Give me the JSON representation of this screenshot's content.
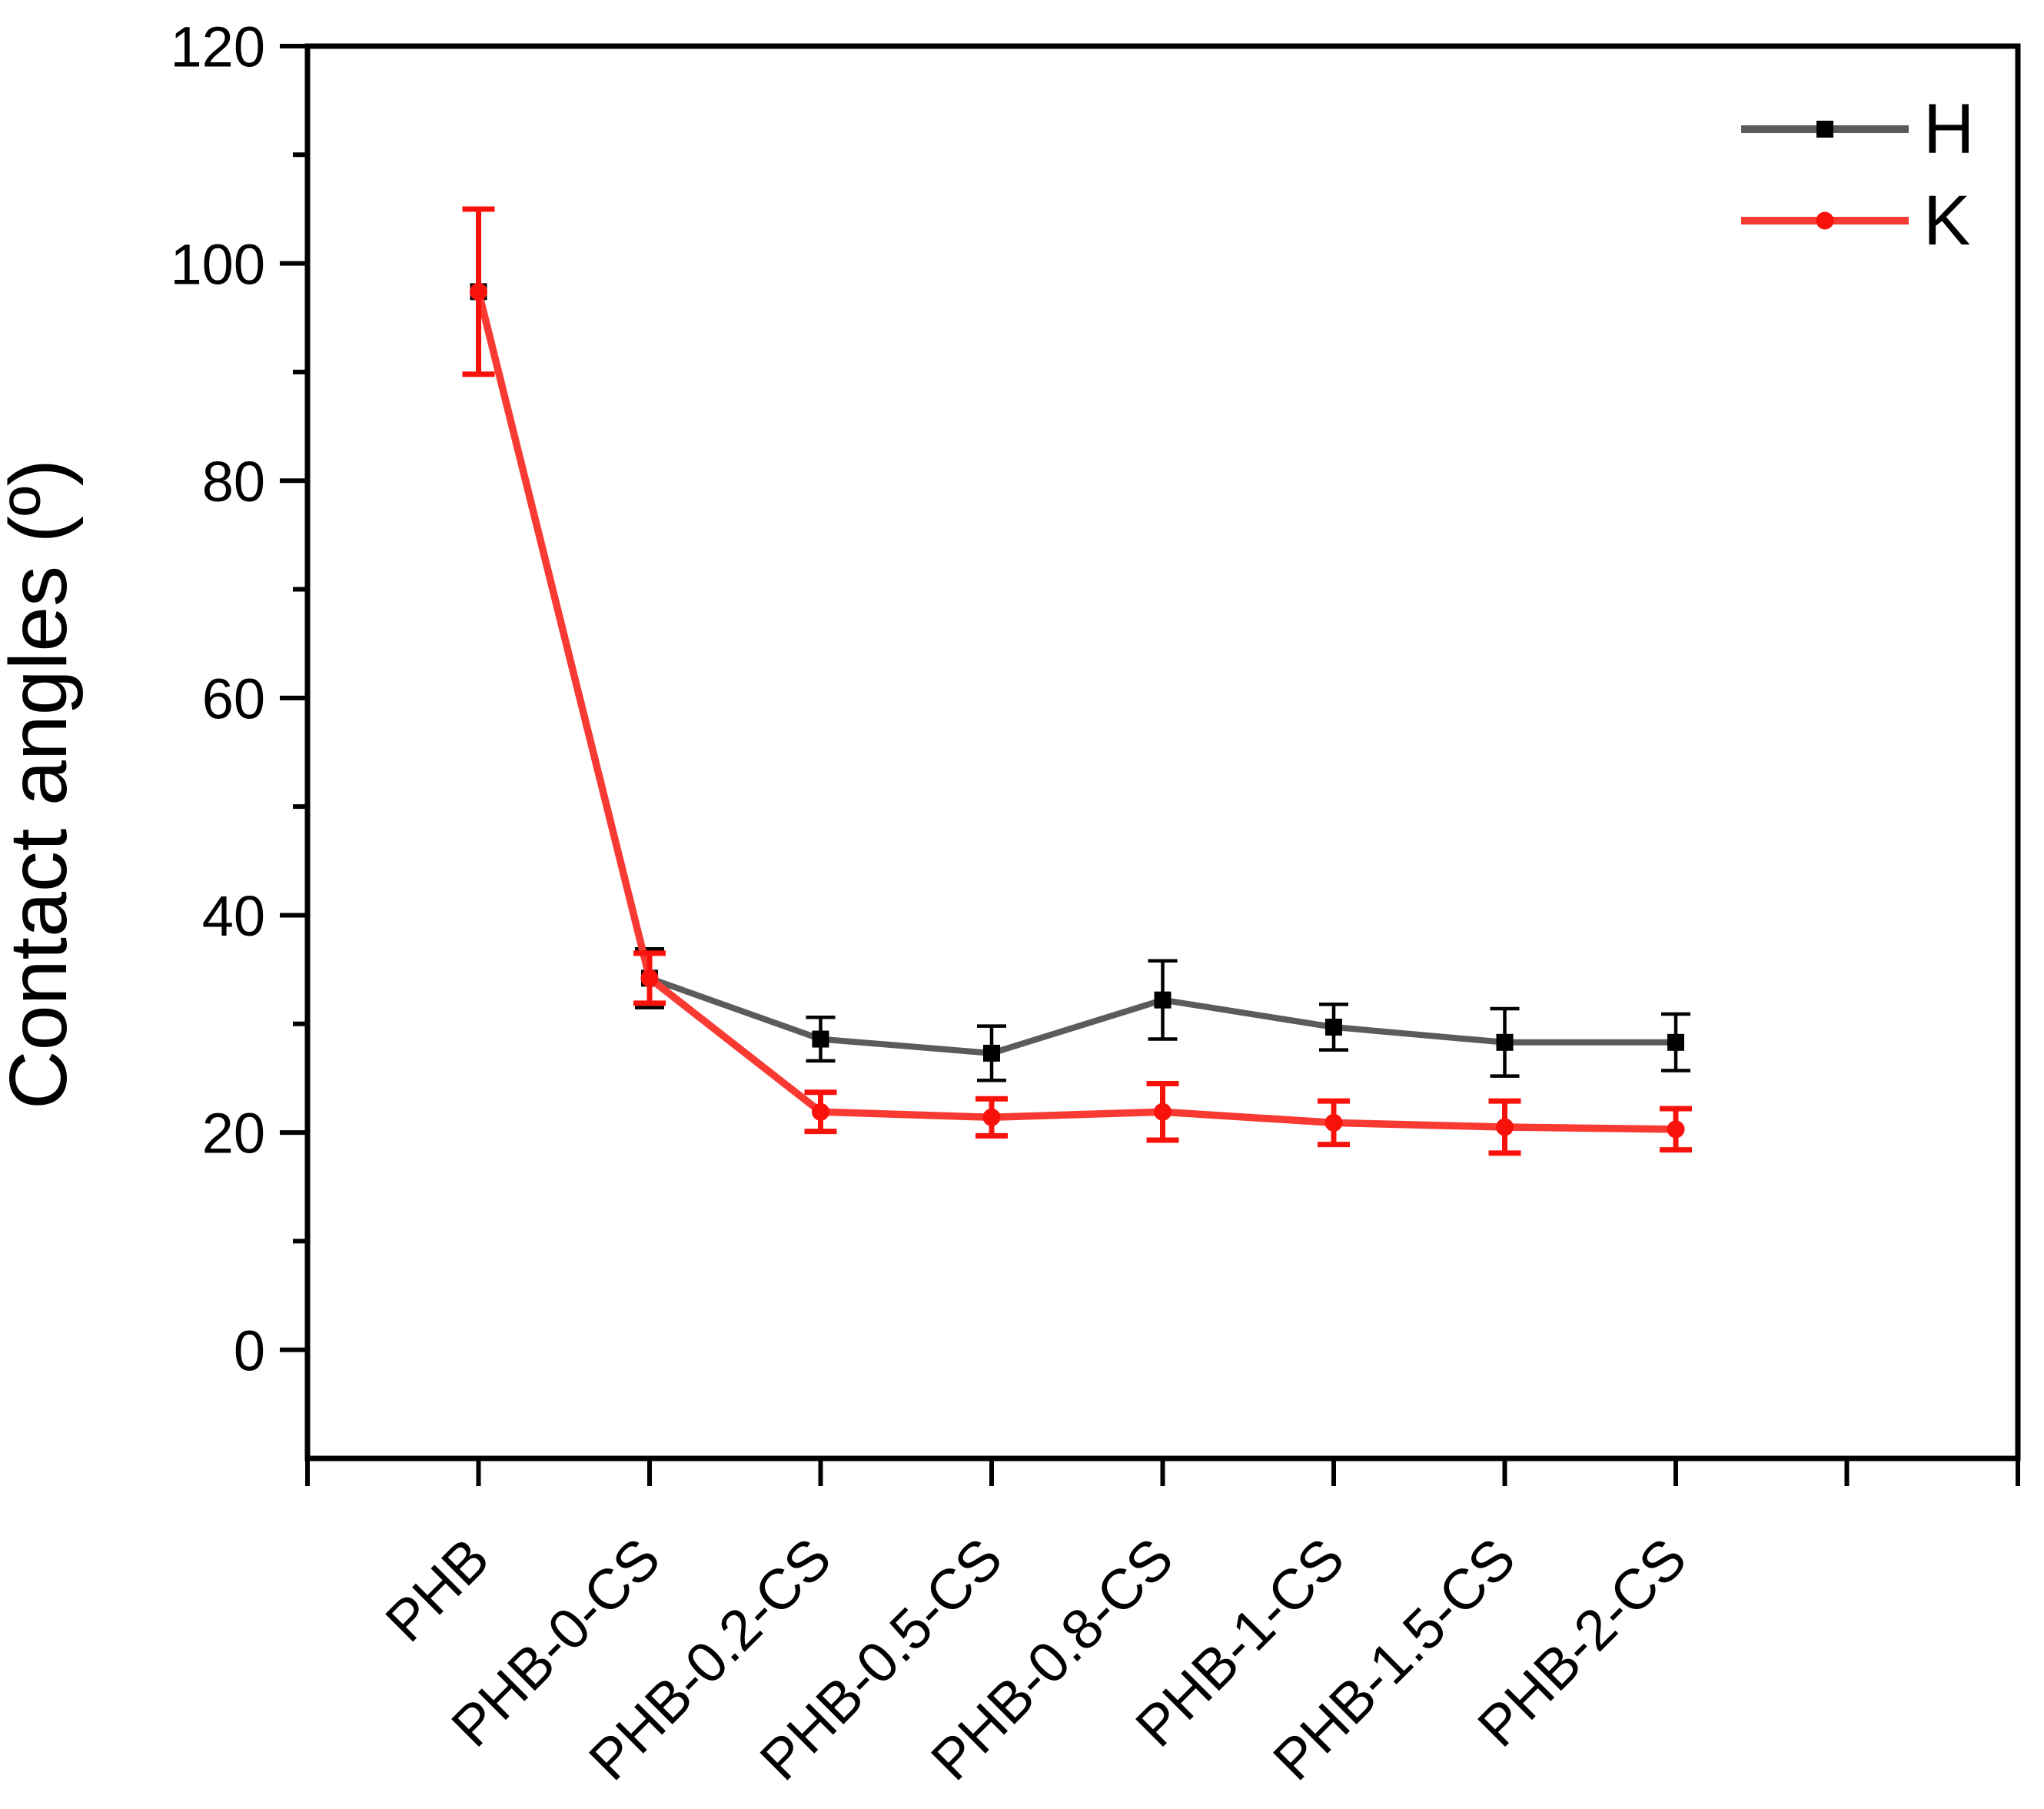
{
  "figure": {
    "y_axis_title": "Contact angles (º)"
  },
  "chart_data": {
    "type": "line",
    "title": "",
    "xlabel": "",
    "ylabel": "Contact angles (º)",
    "categories": [
      "PHB",
      "PHB-0-CS",
      "PHB-0.2-CS",
      "PHB-0.5-CS",
      "PHB-0.8-CS",
      "PHB-1-CS",
      "PHB-1.5-CS",
      "PHB-2-CS"
    ],
    "series": [
      {
        "name": "H",
        "line_color": "#5B5B5B",
        "marker": "square",
        "marker_color": "#000000",
        "error_color": "#000000",
        "values": [
          97.4,
          34.2,
          28.6,
          27.3,
          32.2,
          29.7,
          28.3,
          28.3
        ],
        "errors": [
          7.6,
          2.7,
          2.0,
          2.5,
          3.6,
          2.1,
          3.1,
          2.6
        ]
      },
      {
        "name": "K",
        "line_color": "#F93A33",
        "marker": "circle",
        "marker_color": "#F8120C",
        "error_color": "#F8120C",
        "values": [
          97.4,
          34.2,
          21.9,
          21.4,
          21.9,
          20.9,
          20.5,
          20.3
        ],
        "errors": [
          7.6,
          2.3,
          1.8,
          1.7,
          2.6,
          2.0,
          2.4,
          1.9
        ]
      }
    ],
    "ylim": [
      -10,
      120
    ],
    "yticks_major": [
      0,
      20,
      40,
      60,
      80,
      100,
      120
    ],
    "yticks_minor": [
      10,
      30,
      50,
      70,
      90,
      110
    ],
    "legend_position": "top-right",
    "legend_labels": [
      "H",
      "K"
    ],
    "grid": false
  }
}
